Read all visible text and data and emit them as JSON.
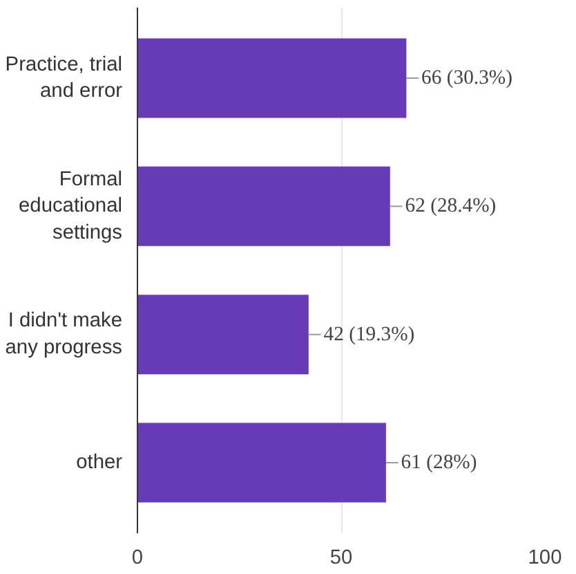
{
  "chart_data": {
    "type": "bar",
    "orientation": "horizontal",
    "categories": [
      "Practice, trial and error",
      "Formal educational settings",
      "I didn't make any progress",
      "other"
    ],
    "values": [
      66,
      62,
      42,
      61
    ],
    "value_labels": [
      "66 (30.3%)",
      "62 (28.4%)",
      "42 (19.3%)",
      "61 (28%)"
    ],
    "color": "#673ab7",
    "xlim": [
      0,
      100
    ],
    "xticks": [
      0,
      50,
      100
    ],
    "grid": "x"
  }
}
